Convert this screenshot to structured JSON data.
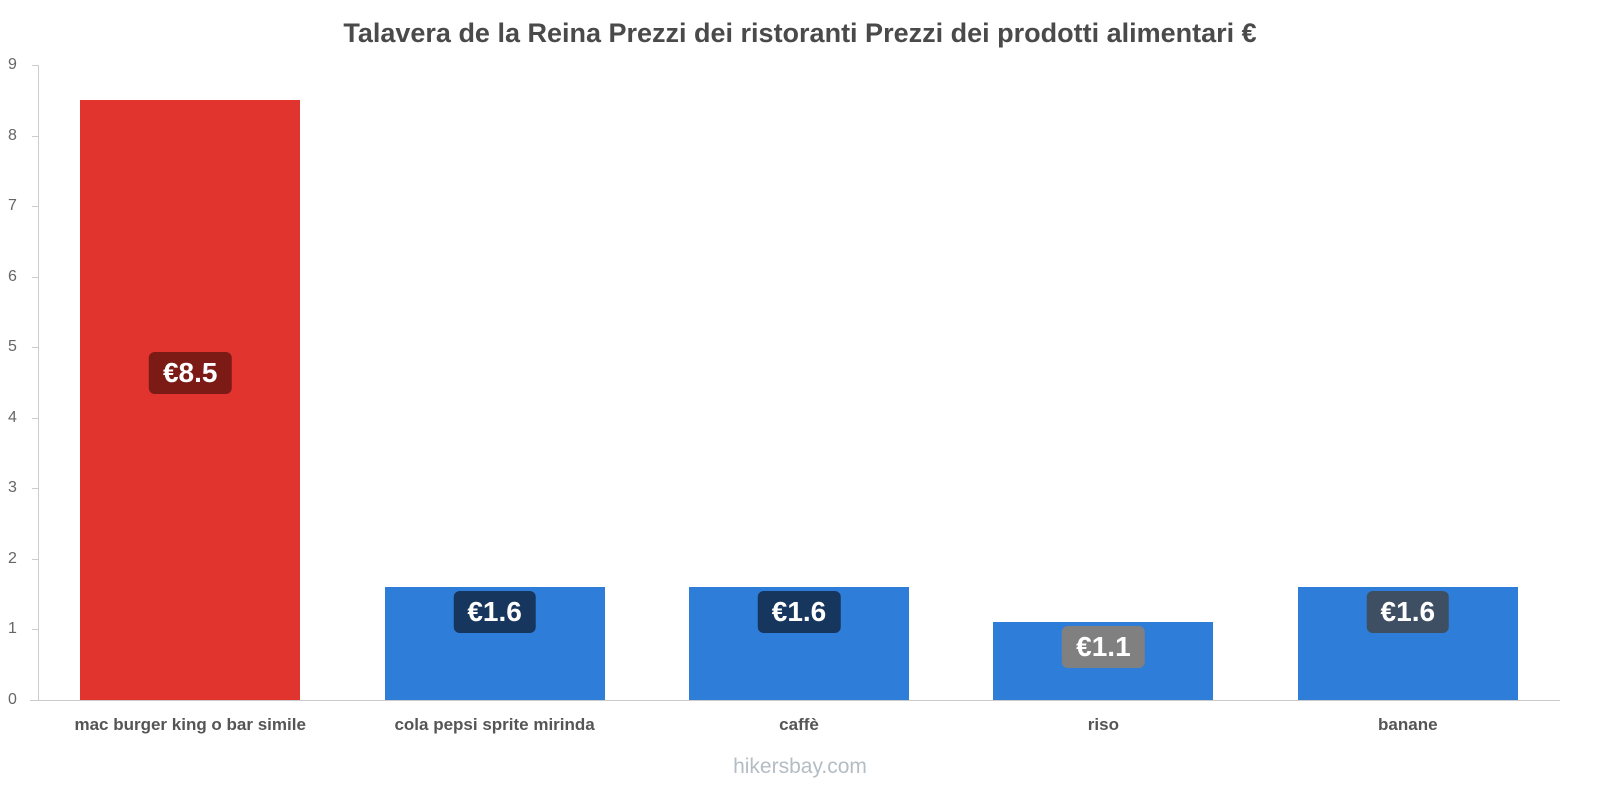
{
  "title": "Talavera de la Reina Prezzi dei ristoranti Prezzi dei prodotti alimentari €",
  "footer": "hikersbay.com",
  "chart_data": {
    "type": "bar",
    "title": "Talavera de la Reina Prezzi dei ristoranti Prezzi dei prodotti alimentari €",
    "categories": [
      "mac burger king o bar simile",
      "cola pepsi sprite mirinda",
      "caffè",
      "riso",
      "banane"
    ],
    "values": [
      8.5,
      1.6,
      1.6,
      1.1,
      1.6
    ],
    "value_labels": [
      "€8.5",
      "€1.6",
      "€1.6",
      "€1.1",
      "€1.6"
    ],
    "bar_colors": [
      "#e1342f",
      "#2e7dd9",
      "#2e7dd9",
      "#2e7dd9",
      "#2e7dd9"
    ],
    "label_colors": [
      "#7c1a15",
      "#16365d",
      "#16365d",
      "#808080",
      "#3f4f63"
    ],
    "xlabel": "",
    "ylabel": "",
    "ylim": [
      0,
      9
    ],
    "yticks": [
      0,
      1,
      2,
      3,
      4,
      5,
      6,
      7,
      8,
      9
    ],
    "grid": false,
    "legend": "none",
    "axis_color": "#cccccc",
    "currency": "€"
  }
}
